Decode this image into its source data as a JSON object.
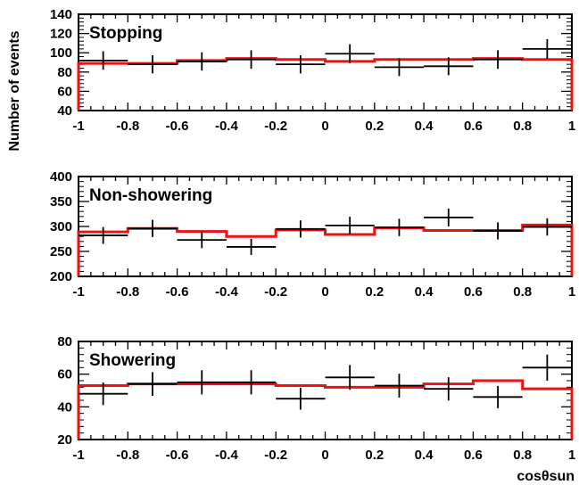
{
  "figure": {
    "ylabel": "Number of events",
    "xlabel": "cosθsun"
  },
  "chart_data": [
    {
      "type": "histogram",
      "title": "Stopping",
      "xlim": [
        -1,
        1
      ],
      "ylim": [
        40,
        140
      ],
      "x_ticks": [
        "-1",
        "-0.8",
        "-0.6",
        "-0.4",
        "-0.2",
        "0",
        "0.2",
        "0.4",
        "0.6",
        "0.8",
        "1"
      ],
      "y_ticks": [
        "40",
        "60",
        "80",
        "100",
        "120",
        "140"
      ],
      "bin_edges": [
        -1,
        -0.8,
        -0.6,
        -0.4,
        -0.2,
        0,
        0.2,
        0.4,
        0.6,
        0.8,
        1
      ],
      "series": [
        {
          "kind": "data",
          "color": "#000000",
          "bin_centers": [
            -0.9,
            -0.7,
            -0.5,
            -0.3,
            -0.1,
            0.1,
            0.3,
            0.5,
            0.7,
            0.9
          ],
          "values": [
            92,
            88,
            91,
            93,
            88,
            99,
            85,
            86,
            93,
            104
          ],
          "errors": [
            9.6,
            9.4,
            9.5,
            9.6,
            9.4,
            9.9,
            9.2,
            9.3,
            9.6,
            10.2
          ]
        },
        {
          "kind": "expectation",
          "color": "#ee1111",
          "values": [
            89,
            89,
            92,
            94,
            93,
            91,
            93,
            93,
            94,
            93
          ]
        }
      ]
    },
    {
      "type": "histogram",
      "title": "Non-showering",
      "xlim": [
        -1,
        1
      ],
      "ylim": [
        200,
        400
      ],
      "x_ticks": [
        "-1",
        "-0.8",
        "-0.6",
        "-0.4",
        "-0.2",
        "0",
        "0.2",
        "0.4",
        "0.6",
        "0.8",
        "1"
      ],
      "y_ticks": [
        "200",
        "250",
        "300",
        "350",
        "400"
      ],
      "bin_edges": [
        -1,
        -0.8,
        -0.6,
        -0.4,
        -0.2,
        0,
        0.2,
        0.4,
        0.6,
        0.8,
        1
      ],
      "series": [
        {
          "kind": "data",
          "color": "#000000",
          "bin_centers": [
            -0.9,
            -0.7,
            -0.5,
            -0.3,
            -0.1,
            0.1,
            0.3,
            0.5,
            0.7,
            0.9
          ],
          "values": [
            282,
            296,
            273,
            259,
            295,
            302,
            298,
            318,
            291,
            299
          ],
          "errors": [
            16.8,
            17.2,
            16.5,
            16.1,
            17.2,
            17.4,
            17.3,
            17.8,
            17.1,
            17.3
          ]
        },
        {
          "kind": "expectation",
          "color": "#ee1111",
          "values": [
            289,
            296,
            290,
            280,
            293,
            284,
            297,
            292,
            292,
            303
          ]
        }
      ]
    },
    {
      "type": "histogram",
      "title": "Showering",
      "xlim": [
        -1,
        1
      ],
      "ylim": [
        20,
        80
      ],
      "x_ticks": [
        "-1",
        "-0.8",
        "-0.6",
        "-0.4",
        "-0.2",
        "0",
        "0.2",
        "0.4",
        "0.6",
        "0.8",
        "1"
      ],
      "y_ticks": [
        "20",
        "40",
        "60",
        "80"
      ],
      "bin_edges": [
        -1,
        -0.8,
        -0.6,
        -0.4,
        -0.2,
        0,
        0.2,
        0.4,
        0.6,
        0.8,
        1
      ],
      "series": [
        {
          "kind": "data",
          "color": "#000000",
          "bin_centers": [
            -0.9,
            -0.7,
            -0.5,
            -0.3,
            -0.1,
            0.1,
            0.3,
            0.5,
            0.7,
            0.9
          ],
          "values": [
            48,
            54,
            55,
            55,
            45,
            58,
            53,
            51,
            46,
            64
          ],
          "errors": [
            6.9,
            7.3,
            7.4,
            7.4,
            6.7,
            7.6,
            7.3,
            7.1,
            6.8,
            8.0
          ]
        },
        {
          "kind": "expectation",
          "color": "#ee1111",
          "values": [
            53,
            54,
            54,
            54,
            53,
            52,
            52,
            54,
            56,
            51
          ]
        }
      ]
    }
  ]
}
